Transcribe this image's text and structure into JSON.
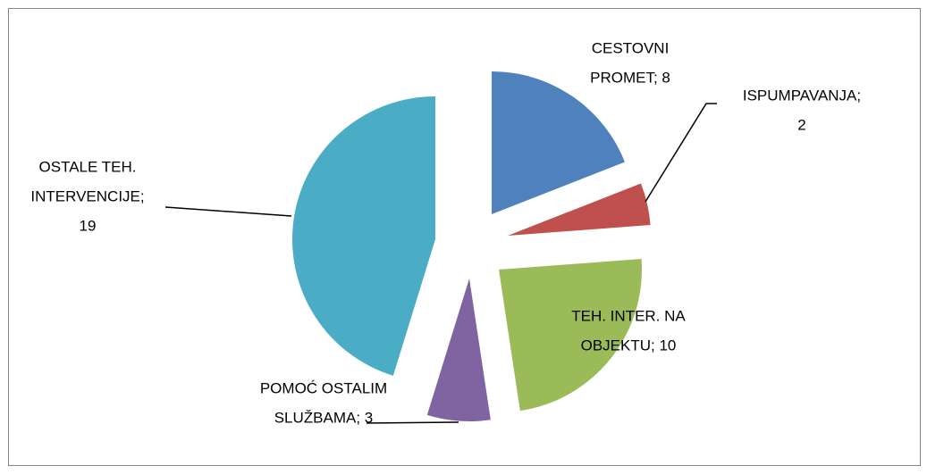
{
  "chart_data": {
    "type": "pie",
    "values": [
      8,
      2,
      10,
      3,
      19
    ],
    "value_labels": [
      [
        "CESTOVNI",
        "PROMET; 8"
      ],
      [
        "ISPUMPAVANJA;",
        "2"
      ],
      [
        "TEH. INTER. NA",
        "OBJEKTU; 10"
      ],
      [
        "POMOĆ OSTALIM",
        "SLUŽBAMA; 3"
      ],
      [
        "OSTALE TEH.",
        "INTERVENCIJE;",
        "19"
      ]
    ],
    "colors": [
      "#4f81bd",
      "#c0504d",
      "#9bbb59",
      "#8064a2",
      "#4bacc6"
    ]
  }
}
